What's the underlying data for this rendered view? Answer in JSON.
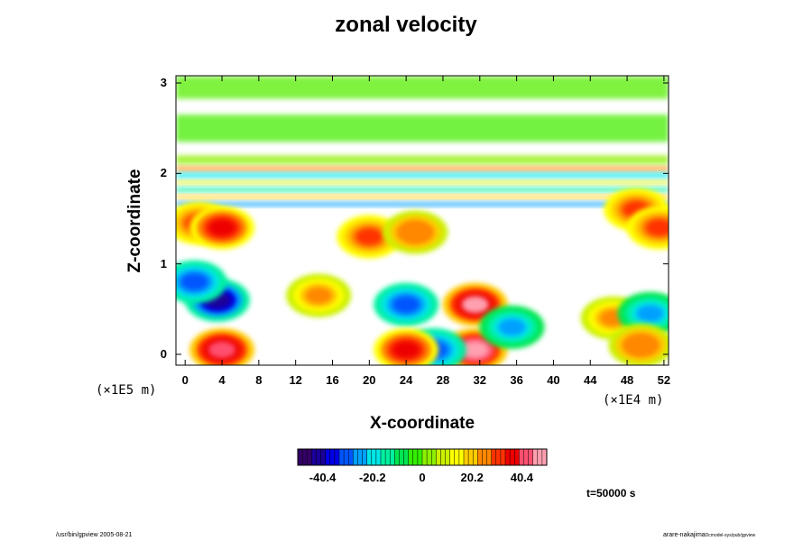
{
  "chart_data": {
    "type": "heatmap",
    "title": "zonal velocity",
    "xlabel": "X-coordinate",
    "ylabel": "Z-coordinate",
    "x_unit": "(×1E4 m)",
    "y_unit": "(×1E5 m)",
    "x_ticks": [
      "0",
      "4",
      "8",
      "12",
      "16",
      "20",
      "24",
      "28",
      "32",
      "36",
      "40",
      "44",
      "48",
      "52"
    ],
    "y_ticks": [
      "0",
      "1",
      "2",
      "3"
    ],
    "xlim": [
      -1,
      52.5
    ],
    "ylim": [
      -0.12,
      3.08
    ],
    "colorbar": {
      "ticks": [
        "-40.4",
        "-20.2",
        "0",
        "20.2",
        "40.4"
      ],
      "range": [
        -50.5,
        50.5
      ],
      "colors": [
        "#330066",
        "#1a0099",
        "#0000e6",
        "#0055ff",
        "#00a0ff",
        "#00e6e6",
        "#00f0a0",
        "#00e650",
        "#33ee00",
        "#8cf000",
        "#ccf000",
        "#ffff00",
        "#ffcc00",
        "#ff8800",
        "#ff3300",
        "#ee0000",
        "#ff5070",
        "#ffa0b0"
      ]
    },
    "features": [
      {
        "x": 1.5,
        "z": 1.45,
        "value": 32
      },
      {
        "x": 4.0,
        "z": 1.4,
        "value": 38
      },
      {
        "x": 20.0,
        "z": 1.3,
        "value": 30
      },
      {
        "x": 25.0,
        "z": 1.35,
        "value": 28
      },
      {
        "x": 49.0,
        "z": 1.6,
        "value": 32
      },
      {
        "x": 51.5,
        "z": 1.4,
        "value": 32
      },
      {
        "x": 3.5,
        "z": 0.6,
        "value": -40
      },
      {
        "x": 1.0,
        "z": 0.8,
        "value": -32
      },
      {
        "x": 24.0,
        "z": 0.55,
        "value": -32
      },
      {
        "x": 31.5,
        "z": 0.55,
        "value": 45
      },
      {
        "x": 31.5,
        "z": 0.05,
        "value": 50
      },
      {
        "x": 27.0,
        "z": 0.05,
        "value": -30
      },
      {
        "x": 24.0,
        "z": 0.05,
        "value": 36
      },
      {
        "x": 4.0,
        "z": 0.05,
        "value": 44
      },
      {
        "x": 14.5,
        "z": 0.65,
        "value": 24
      },
      {
        "x": 35.5,
        "z": 0.3,
        "value": -24
      },
      {
        "x": 46.5,
        "z": 0.4,
        "value": 24
      },
      {
        "x": 50.5,
        "z": 0.45,
        "value": -24
      },
      {
        "x": 49.5,
        "z": 0.1,
        "value": 28
      }
    ],
    "time_label": "t=50000 s"
  },
  "footer": {
    "left": "/usr/bin/gpview 2005-08-21",
    "right_main": "arare-nakajima",
    "right_sub": "Dcmodel-sys/pub/gpview"
  }
}
